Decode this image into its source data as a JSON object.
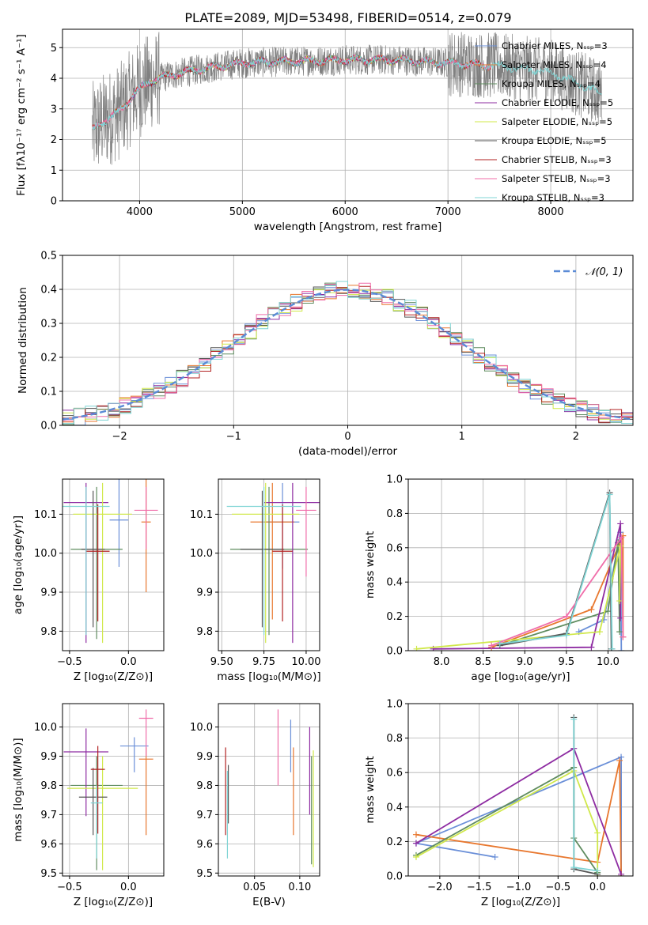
{
  "figure_title": "PLATE=2089, MJD=53498, FIBERID=0514, z=0.079",
  "colors": [
    "#6a8fd8",
    "#e8772e",
    "#5f8c5f",
    "#8e2ca2",
    "#d0e84a",
    "#555555",
    "#b22222",
    "#f06eaa",
    "#7fd4d4",
    "#808080"
  ],
  "chart_data": [
    {
      "id": "spectrum",
      "type": "line",
      "xlabel": "wavelength [Angstrom, rest frame]",
      "ylabel": "Flux [fλ10⁻¹⁷ erg cm⁻² s⁻¹ A⁻¹]",
      "xlim": [
        3250,
        8800
      ],
      "ylim": [
        0,
        5.6
      ],
      "xticks": [
        4000,
        5000,
        6000,
        7000,
        8000
      ],
      "yticks": [
        0,
        1,
        2,
        3,
        4,
        5
      ],
      "legend_position": "top-right",
      "series": [
        {
          "name": "Chabrier MILES, N_SSP=3",
          "range": [
            3540,
            7420
          ]
        },
        {
          "name": "Salpeter MILES, N_SSP=4",
          "range": [
            3540,
            7420
          ]
        },
        {
          "name": "Kroupa MILES, N_SSP=4",
          "range": [
            3540,
            7420
          ]
        },
        {
          "name": "Chabrier ELODIE, N_SSP=5",
          "range": [
            3900,
            6800
          ]
        },
        {
          "name": "Salpeter ELODIE, N_SSP=5",
          "range": [
            3900,
            6800
          ]
        },
        {
          "name": "Kroupa ELODIE, N_SSP=5",
          "range": [
            3900,
            6800
          ]
        },
        {
          "name": "Chabrier STELIB, N_SSP=3",
          "range": [
            3540,
            7420
          ]
        },
        {
          "name": "Salpeter STELIB, N_SSP=3",
          "range": [
            3540,
            7420
          ]
        },
        {
          "name": "Kroupa STELIB, N_SSP=3",
          "range": [
            3540,
            8500
          ]
        }
      ],
      "continuum": [
        [
          3540,
          2.3
        ],
        [
          3650,
          2.6
        ],
        [
          3800,
          2.9
        ],
        [
          3950,
          3.5
        ],
        [
          4100,
          3.9
        ],
        [
          4300,
          4.1
        ],
        [
          4600,
          4.3
        ],
        [
          5000,
          4.5
        ],
        [
          5500,
          4.55
        ],
        [
          6000,
          4.6
        ],
        [
          6500,
          4.6
        ],
        [
          7000,
          4.5
        ],
        [
          7500,
          4.4
        ],
        [
          8000,
          4.2
        ],
        [
          8500,
          3.5
        ]
      ]
    },
    {
      "id": "residuals",
      "type": "step",
      "xlabel": "(data-model)/error",
      "ylabel": "Normed distribution",
      "xlim": [
        -2.5,
        2.5
      ],
      "ylim": [
        0,
        0.5
      ],
      "xticks": [
        -2,
        -1,
        0,
        1,
        2
      ],
      "yticks": [
        0.0,
        0.1,
        0.2,
        0.3,
        0.4,
        0.5
      ],
      "bin_width": 0.1,
      "reference": {
        "name": "𝒩(0, 1)",
        "mean": 0,
        "sigma": 1
      },
      "legend_position": "top-right"
    },
    {
      "id": "age_vs_Z",
      "type": "errorbar",
      "xlabel": "Z [log₁₀(Z/Z⊙)]",
      "ylabel": "age  [log₁₀(age/yr)]",
      "xlim": [
        -0.56,
        0.3
      ],
      "ylim": [
        9.75,
        10.19
      ],
      "xticks": [
        -0.5,
        0.0
      ],
      "yticks": [
        9.8,
        9.9,
        10.0,
        10.1
      ],
      "points": [
        {
          "x": -0.08,
          "y": 10.085,
          "xerr": 0.08,
          "yerr": [
            0.12,
            0.12
          ],
          "color": 0
        },
        {
          "x": 0.15,
          "y": 10.08,
          "xerr": 0.04,
          "yerr": [
            0.18,
            0.12
          ],
          "color": 1
        },
        {
          "x": -0.27,
          "y": 10.01,
          "xerr": 0.22,
          "yerr": [
            0.23,
            0.16
          ],
          "color": 2
        },
        {
          "x": -0.36,
          "y": 10.13,
          "xerr": 0.19,
          "yerr": [
            0.36,
            0.05
          ],
          "color": 3
        },
        {
          "x": -0.22,
          "y": 10.1,
          "xerr": 0.25,
          "yerr": [
            0.33,
            0.08
          ],
          "color": 4
        },
        {
          "x": -0.3,
          "y": 10.01,
          "xerr": 0.1,
          "yerr": [
            0.2,
            0.15
          ],
          "color": 5
        },
        {
          "x": -0.26,
          "y": 10.005,
          "xerr": 0.1,
          "yerr": [
            0.18,
            0.12
          ],
          "color": 6
        },
        {
          "x": 0.15,
          "y": 10.11,
          "xerr": 0.1,
          "yerr": [
            0.1,
            0.06
          ],
          "color": 7
        },
        {
          "x": -0.36,
          "y": 10.12,
          "xerr": 0.2,
          "yerr": [
            0.33,
            0.05
          ],
          "color": 8
        }
      ]
    },
    {
      "id": "age_vs_mass",
      "type": "errorbar",
      "xlabel": "mass [log₁₀(M/M⊙)]",
      "ylabel": "",
      "xlim": [
        9.48,
        10.08
      ],
      "ylim": [
        9.75,
        10.19
      ],
      "xticks": [
        9.5,
        9.75,
        10.0
      ],
      "ytick_labels": [
        "9.8",
        "9.9",
        "10.0",
        "10.1"
      ],
      "yticks": [
        9.8,
        9.9,
        10.0,
        10.1
      ],
      "points": [
        {
          "x": 9.86,
          "y": 10.08,
          "xerr": 0.1,
          "yerr": [
            0.12,
            0.1
          ],
          "color": 0
        },
        {
          "x": 9.8,
          "y": 10.08,
          "xerr": 0.13,
          "yerr": [
            0.25,
            0.1
          ],
          "color": 1
        },
        {
          "x": 9.78,
          "y": 10.01,
          "xerr": 0.23,
          "yerr": [
            0.22,
            0.16
          ],
          "color": 2
        },
        {
          "x": 9.92,
          "y": 10.13,
          "xerr": 0.17,
          "yerr": [
            0.36,
            0.05
          ],
          "color": 3
        },
        {
          "x": 9.76,
          "y": 10.1,
          "xerr": 0.2,
          "yerr": [
            0.33,
            0.08
          ],
          "color": 4
        },
        {
          "x": 9.74,
          "y": 10.01,
          "xerr": 0.13,
          "yerr": [
            0.2,
            0.15
          ],
          "color": 5
        },
        {
          "x": 9.86,
          "y": 10.005,
          "xerr": 0.06,
          "yerr": [
            0.18,
            0.12
          ],
          "color": 6
        },
        {
          "x": 10.0,
          "y": 10.11,
          "xerr": 0.06,
          "yerr": [
            0.17,
            0.06
          ],
          "color": 7
        },
        {
          "x": 9.75,
          "y": 10.12,
          "xerr": 0.22,
          "yerr": [
            0.33,
            0.05
          ],
          "color": 8
        }
      ]
    },
    {
      "id": "weight_vs_age",
      "type": "line",
      "xlabel": "age  [log₁₀(age/yr)]",
      "ylabel": "mass weight",
      "xlim": [
        7.6,
        10.3
      ],
      "ylim": [
        0.0,
        1.0
      ],
      "xticks": [
        8.0,
        8.5,
        9.0,
        9.5,
        10.0
      ],
      "yticks": [
        0.0,
        0.2,
        0.4,
        0.6,
        0.8,
        1.0
      ],
      "series": [
        {
          "color": 0,
          "points": [
            [
              9.65,
              0.11
            ],
            [
              9.95,
              0.18
            ],
            [
              10.15,
              0.69
            ],
            [
              10.16,
              0.0
            ]
          ]
        },
        {
          "color": 1,
          "points": [
            [
              8.6,
              0.02
            ],
            [
              9.8,
              0.24
            ],
            [
              10.18,
              0.67
            ],
            [
              10.18,
              0.08
            ]
          ]
        },
        {
          "color": 2,
          "points": [
            [
              8.7,
              0.03
            ],
            [
              10.0,
              0.23
            ],
            [
              10.12,
              0.63
            ],
            [
              10.14,
              0.11
            ]
          ]
        },
        {
          "color": 3,
          "points": [
            [
              7.9,
              0.01
            ],
            [
              9.8,
              0.02
            ],
            [
              10.15,
              0.74
            ],
            [
              10.15,
              0.19
            ]
          ]
        },
        {
          "color": 4,
          "points": [
            [
              7.7,
              0.01
            ],
            [
              9.9,
              0.11
            ],
            [
              10.15,
              0.61
            ],
            [
              10.14,
              0.29
            ]
          ]
        },
        {
          "color": 5,
          "points": [
            [
              8.7,
              0.03
            ],
            [
              9.5,
              0.1
            ],
            [
              10.02,
              0.92
            ],
            [
              10.04,
              0.01
            ]
          ]
        },
        {
          "color": 7,
          "points": [
            [
              8.6,
              0.03
            ],
            [
              9.5,
              0.2
            ],
            [
              10.16,
              0.66
            ],
            [
              10.18,
              0.08
            ]
          ]
        },
        {
          "color": 8,
          "points": [
            [
              8.7,
              0.04
            ],
            [
              9.5,
              0.09
            ],
            [
              10.02,
              0.91
            ],
            [
              10.05,
              0.01
            ]
          ]
        }
      ]
    },
    {
      "id": "mass_vs_Z",
      "type": "errorbar",
      "xlabel": "Z [log₁₀(Z/Z⊙)]",
      "ylabel": "mass [log₁₀(M/M⊙)]",
      "xlim": [
        -0.56,
        0.3
      ],
      "ylim": [
        9.49,
        10.08
      ],
      "xticks": [
        -0.5,
        0.0
      ],
      "yticks": [
        9.5,
        9.6,
        9.7,
        9.8,
        9.9,
        10.0
      ],
      "points": [
        {
          "x": 0.05,
          "y": 9.935,
          "xerr": 0.12,
          "yerr": [
            0.09,
            0.03
          ],
          "color": 0
        },
        {
          "x": 0.15,
          "y": 9.89,
          "xerr": 0.06,
          "yerr": [
            0.26,
            0.04
          ],
          "color": 1
        },
        {
          "x": -0.27,
          "y": 9.8,
          "xerr": 0.22,
          "yerr": [
            0.29,
            0.1
          ],
          "color": 2
        },
        {
          "x": -0.36,
          "y": 9.915,
          "xerr": 0.19,
          "yerr": [
            0.22,
            0.08
          ],
          "color": 3
        },
        {
          "x": -0.22,
          "y": 9.79,
          "xerr": 0.3,
          "yerr": [
            0.28,
            0.11
          ],
          "color": 4
        },
        {
          "x": -0.3,
          "y": 9.76,
          "xerr": 0.12,
          "yerr": [
            0.13,
            0.1
          ],
          "color": 5
        },
        {
          "x": -0.26,
          "y": 9.855,
          "xerr": 0.06,
          "yerr": [
            0.22,
            0.08
          ],
          "color": 6
        },
        {
          "x": 0.15,
          "y": 10.03,
          "xerr": 0.06,
          "yerr": [
            0.13,
            0.03
          ],
          "color": 7
        },
        {
          "x": -0.27,
          "y": 9.74,
          "xerr": 0.05,
          "yerr": [
            0.19,
            0.06
          ],
          "color": 8
        }
      ]
    },
    {
      "id": "mass_vs_ebv",
      "type": "errorbar",
      "xlabel": "E(B-V)",
      "ylabel": "",
      "xlim": [
        0.01,
        0.122
      ],
      "ylim": [
        9.49,
        10.08
      ],
      "xticks": [
        0.05,
        0.1
      ],
      "xtick_labels": [
        "0.05",
        "0.10"
      ],
      "yticks": [
        9.5,
        9.6,
        9.7,
        9.8,
        9.9,
        10.0
      ],
      "points": [
        {
          "x": 0.09,
          "y": 9.935,
          "yerr": [
            0.09,
            0.09
          ],
          "color": 0
        },
        {
          "x": 0.093,
          "y": 9.78,
          "yerr": [
            0.15,
            0.15
          ],
          "color": 1
        },
        {
          "x": 0.113,
          "y": 9.82,
          "yerr": [
            0.29,
            0.08
          ],
          "color": 2
        },
        {
          "x": 0.111,
          "y": 9.85,
          "yerr": [
            0.15,
            0.15
          ],
          "color": 3
        },
        {
          "x": 0.115,
          "y": 9.72,
          "yerr": [
            0.2,
            0.2
          ],
          "color": 4
        },
        {
          "x": 0.021,
          "y": 9.77,
          "yerr": [
            0.1,
            0.1
          ],
          "color": 5
        },
        {
          "x": 0.018,
          "y": 9.8,
          "yerr": [
            0.17,
            0.13
          ],
          "color": 6
        },
        {
          "x": 0.076,
          "y": 9.92,
          "yerr": [
            0.12,
            0.14
          ],
          "color": 7
        },
        {
          "x": 0.02,
          "y": 9.7,
          "yerr": [
            0.15,
            0.15
          ],
          "color": 8
        }
      ]
    },
    {
      "id": "weight_vs_Z",
      "type": "line",
      "xlabel": "Z [log₁₀(Z/Z⊙)]",
      "ylabel": "mass weight",
      "xlim": [
        -2.4,
        0.45
      ],
      "ylim": [
        0.0,
        1.0
      ],
      "xticks": [
        -2.0,
        -1.5,
        -1.0,
        -0.5,
        0.0
      ],
      "xtick_labels": [
        "−2.0",
        "−1.5",
        "−1.0",
        "−0.5",
        "0.0"
      ],
      "yticks": [
        0.0,
        0.2,
        0.4,
        0.6,
        0.8,
        1.0
      ],
      "series": [
        {
          "color": 0,
          "points": [
            [
              -1.3,
              0.11
            ],
            [
              -2.3,
              0.19
            ],
            [
              0.3,
              0.69
            ],
            [
              0.3,
              0.0
            ]
          ]
        },
        {
          "color": 1,
          "points": [
            [
              -2.3,
              0.24
            ],
            [
              0.0,
              0.08
            ],
            [
              0.28,
              0.67
            ],
            [
              0.3,
              0.0
            ]
          ]
        },
        {
          "color": 2,
          "points": [
            [
              -2.3,
              0.12
            ],
            [
              -0.3,
              0.63
            ],
            [
              -0.3,
              0.22
            ],
            [
              0.0,
              0.02
            ]
          ]
        },
        {
          "color": 3,
          "points": [
            [
              -2.3,
              0.19
            ],
            [
              -0.3,
              0.74
            ],
            [
              0.3,
              0.01
            ]
          ]
        },
        {
          "color": 4,
          "points": [
            [
              -2.3,
              0.11
            ],
            [
              -0.3,
              0.61
            ],
            [
              0.0,
              0.25
            ],
            [
              0.0,
              0.0
            ]
          ]
        },
        {
          "color": 5,
          "points": [
            [
              -0.3,
              0.92
            ],
            [
              -0.3,
              0.04
            ],
            [
              0.0,
              0.01
            ]
          ]
        },
        {
          "color": 8,
          "points": [
            [
              -0.3,
              0.91
            ],
            [
              -0.3,
              0.05
            ],
            [
              0.0,
              0.03
            ]
          ]
        }
      ]
    }
  ]
}
